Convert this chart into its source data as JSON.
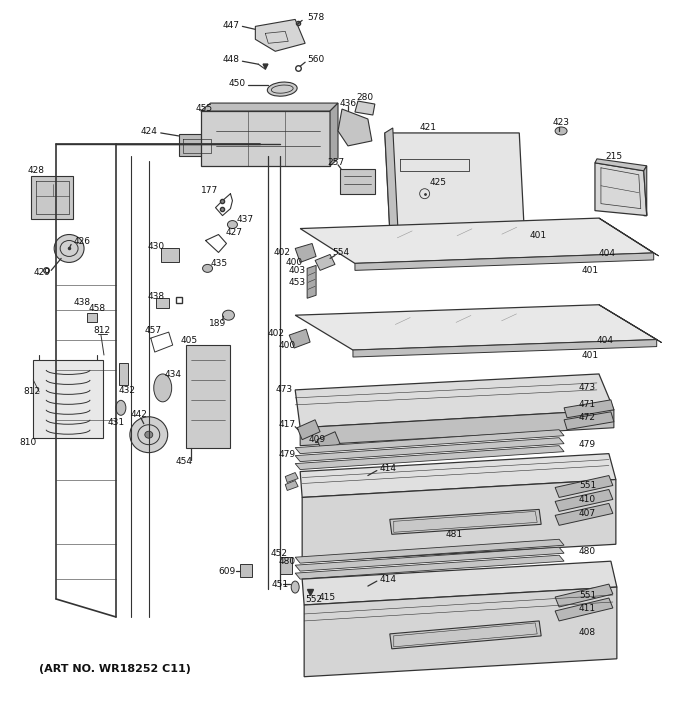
{
  "art_no_text": "(ART NO. WR18252 C11)",
  "background_color": "#ffffff",
  "line_color": "#333333",
  "text_color": "#111111",
  "fig_width": 6.8,
  "fig_height": 7.25,
  "dpi": 100,
  "label_fontsize": 6.5,
  "art_no_fontsize": 8.0
}
